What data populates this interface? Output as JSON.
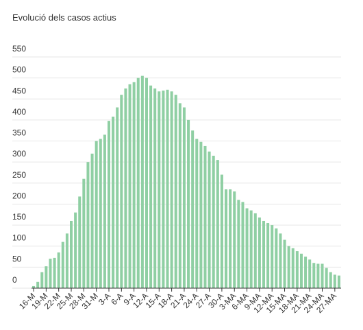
{
  "chart_data": {
    "type": "bar",
    "title": "Evolució dels casos actius",
    "categories": [
      "16-M",
      null,
      null,
      "19-M",
      null,
      null,
      "22-M",
      null,
      null,
      "25-M",
      null,
      null,
      "28-M",
      null,
      null,
      "31-M",
      null,
      null,
      "3-A",
      null,
      null,
      "6-A",
      null,
      null,
      "9-A",
      null,
      null,
      "12-A",
      null,
      null,
      "15-A",
      null,
      null,
      "18-A",
      null,
      null,
      "21-A",
      null,
      null,
      "24-A",
      null,
      null,
      "27-A",
      null,
      null,
      "30-A",
      null,
      null,
      "3-MA",
      null,
      null,
      "6-MA",
      null,
      null,
      "9-MA",
      null,
      null,
      "12-MA",
      null,
      null,
      "15-MA",
      null,
      null,
      "18-MA",
      null,
      null,
      "21-MA",
      null,
      null,
      "24-MA",
      null,
      null,
      "27-MA",
      null
    ],
    "values": [
      5,
      15,
      38,
      52,
      70,
      72,
      85,
      110,
      130,
      160,
      180,
      218,
      260,
      300,
      320,
      350,
      355,
      365,
      398,
      408,
      430,
      460,
      475,
      485,
      490,
      500,
      505,
      500,
      482,
      475,
      468,
      470,
      472,
      468,
      460,
      440,
      430,
      400,
      375,
      355,
      348,
      338,
      325,
      315,
      305,
      270,
      235,
      235,
      230,
      210,
      205,
      190,
      185,
      178,
      168,
      160,
      155,
      150,
      142,
      130,
      115,
      100,
      95,
      88,
      82,
      75,
      68,
      60,
      58,
      58,
      48,
      38,
      32,
      30
    ],
    "color": "#8fcfa3",
    "ylim": [
      0,
      550
    ],
    "yticks": [
      0,
      50,
      100,
      150,
      200,
      250,
      300,
      350,
      400,
      450,
      500,
      550
    ],
    "grid": true
  }
}
